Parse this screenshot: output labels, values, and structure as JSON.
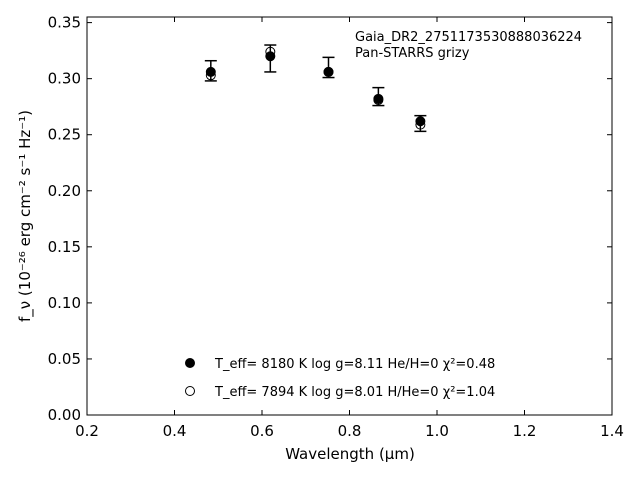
{
  "chart_data": {
    "type": "scatter",
    "xlabel": "Wavelength (μm)",
    "ylabel": "f_ν (10⁻²⁶ erg cm⁻² s⁻¹ Hz⁻¹)",
    "xlim": [
      0.2,
      1.4
    ],
    "ylim": [
      0.0,
      0.355
    ],
    "xticks": [
      0.2,
      0.4,
      0.6,
      0.8,
      1.0,
      1.2,
      1.4
    ],
    "xtick_labels": [
      "0.2",
      "0.4",
      "0.6",
      "0.8",
      "1.0",
      "1.2",
      "1.4"
    ],
    "yticks": [
      0.0,
      0.05,
      0.1,
      0.15,
      0.2,
      0.25,
      0.3,
      0.35
    ],
    "ytick_labels": [
      "0.00",
      "0.05",
      "0.10",
      "0.15",
      "0.20",
      "0.25",
      "0.30",
      "0.35"
    ],
    "annotations": [
      "Gaia_DR2_2751173530888036224",
      "Pan-STARRS grizy"
    ],
    "observed": {
      "x": [
        0.483,
        0.619,
        0.752,
        0.866,
        0.962
      ],
      "y": [
        0.307,
        0.318,
        0.31,
        0.284,
        0.26
      ],
      "yerr": [
        0.009,
        0.012,
        0.009,
        0.008,
        0.007
      ]
    },
    "series": [
      {
        "name": "T_eff= 8180 K log g=8.11 He/H=0 χ²=0.48",
        "marker": "filled-circle",
        "x": [
          0.483,
          0.619,
          0.752,
          0.866,
          0.962
        ],
        "y": [
          0.306,
          0.32,
          0.306,
          0.282,
          0.262
        ]
      },
      {
        "name": "T_eff= 7894 K log g=8.01 H/He=0 χ²=1.04",
        "marker": "open-circle",
        "x": [
          0.483,
          0.619,
          0.752,
          0.866,
          0.962
        ],
        "y": [
          0.303,
          0.324,
          0.306,
          0.281,
          0.259
        ]
      }
    ],
    "legend_position": "bottom-center",
    "grid": false
  }
}
